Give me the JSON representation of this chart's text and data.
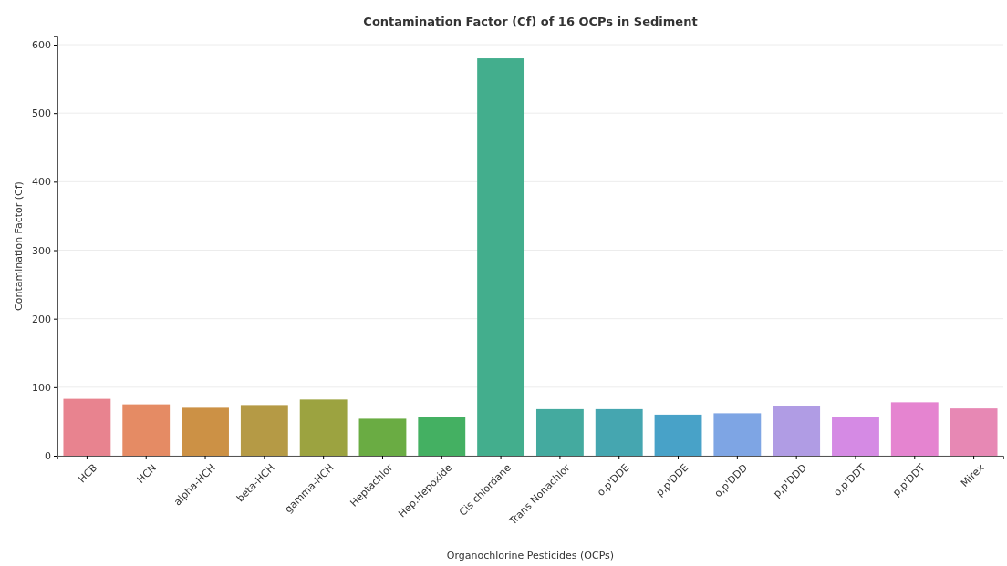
{
  "chart_data": {
    "type": "bar",
    "title": "Contamination Factor (Cf) of 16 OCPs in Sediment",
    "xlabel": "Organochlorine Pesticides (OCPs)",
    "ylabel": "Contamination Factor (Cf)",
    "categories": [
      "HCB",
      "HCN",
      "alpha-HCH",
      "beta-HCH",
      "gamma-HCH",
      "Heptachlor",
      "Hep.Hepoxide",
      "Cis chlordane",
      "Trans Nonachlor",
      "o,p'DDE",
      "p,p'DDE",
      "o,p'DDD",
      "p,p'DDD",
      "o,p'DDT",
      "p,p'DDT",
      "Mirex"
    ],
    "values": [
      83,
      75,
      70,
      74,
      82,
      54,
      57,
      580,
      68,
      68,
      60,
      62,
      72,
      57,
      78,
      69
    ],
    "colors": [
      "#e8838f",
      "#e58b64",
      "#cc9145",
      "#b59a45",
      "#9ca340",
      "#6aac43",
      "#44b062",
      "#43ae8d",
      "#44aa9f",
      "#45a6b0",
      "#48a2c8",
      "#7ea5e4",
      "#b09ce4",
      "#d58ae4",
      "#e584d0",
      "#e788b4"
    ],
    "ylim": [
      0,
      612
    ],
    "yticks": [
      0,
      100,
      200,
      300,
      400,
      500,
      600
    ],
    "grid": "y"
  }
}
